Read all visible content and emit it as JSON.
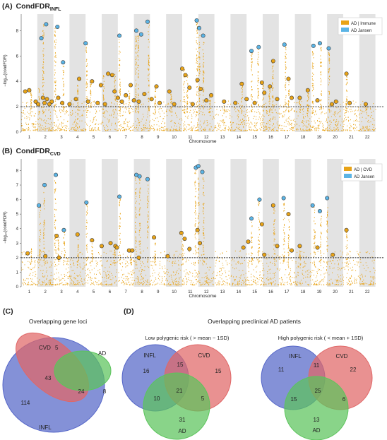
{
  "colors": {
    "immune": "#E8A317",
    "jansen": "#5BB4E5",
    "band": "#E3E3E3",
    "infl": "#5566C8",
    "cvd": "#E06767",
    "ad": "#5CC45C",
    "text": "#222222"
  },
  "chart_data": [
    {
      "type": "scatter",
      "panel": "(A)",
      "title": "CondFDR",
      "title_sub": "INFL",
      "ylabel": "−log₁₀(condFDR)",
      "xlabel": "Chromosome",
      "ylim": [
        0,
        9.3
      ],
      "yticks": [
        "0",
        "2",
        "4",
        "6",
        "8"
      ],
      "threshold": 2,
      "grid": false,
      "legend_position": "top-right",
      "legend": [
        "AD | Immune",
        "AD Jansen"
      ],
      "chromosomes": [
        "1",
        "2",
        "3",
        "4",
        "5",
        "6",
        "7",
        "8",
        "9",
        "10",
        "11",
        "12",
        "13",
        "14",
        "15",
        "16",
        "17",
        "18",
        "19",
        "20",
        "21",
        "22"
      ],
      "x_domain": [
        0,
        22.5
      ],
      "spikes": [
        [
          0.6,
          3.3
        ],
        [
          1.1,
          3.5
        ],
        [
          1.35,
          8.5
        ],
        [
          2.1,
          8.3
        ],
        [
          2.6,
          5.6
        ],
        [
          3.5,
          4.3
        ],
        [
          4.05,
          7.0
        ],
        [
          4.3,
          4.1
        ],
        [
          5.1,
          4.6
        ],
        [
          5.8,
          4.6
        ],
        [
          6.1,
          7.6
        ],
        [
          6.7,
          3.9
        ],
        [
          7.1,
          8.1
        ],
        [
          7.25,
          7.7
        ],
        [
          7.9,
          8.7
        ],
        [
          8.3,
          3.6
        ],
        [
          9.3,
          3.3
        ],
        [
          10.1,
          5.1
        ],
        [
          10.3,
          4.5
        ],
        [
          10.9,
          8.8
        ],
        [
          11.05,
          8.0
        ],
        [
          11.3,
          7.6
        ],
        [
          11.7,
          2.9
        ],
        [
          12.6,
          2.5
        ],
        [
          13.7,
          3.9
        ],
        [
          14.3,
          6.3
        ],
        [
          14.7,
          6.6
        ],
        [
          15.0,
          3.9
        ],
        [
          15.4,
          3.6
        ],
        [
          15.6,
          5.7
        ],
        [
          16.4,
          6.9
        ],
        [
          16.6,
          4.2
        ],
        [
          17.3,
          2.8
        ],
        [
          17.8,
          3.4
        ],
        [
          18.1,
          6.8
        ],
        [
          18.6,
          7.0
        ],
        [
          19.1,
          6.6
        ],
        [
          20.2,
          4.6
        ],
        [
          21.4,
          2.3
        ]
      ],
      "points": [
        {
          "x": 0.25,
          "y": 3.2,
          "g": 0
        },
        {
          "x": 0.5,
          "y": 3.3,
          "g": 0
        },
        {
          "x": 0.9,
          "y": 2.4,
          "g": 0
        },
        {
          "x": 1.05,
          "y": 2.2,
          "g": 0
        },
        {
          "x": 1.25,
          "y": 7.4,
          "g": 1
        },
        {
          "x": 1.55,
          "y": 8.5,
          "g": 1
        },
        {
          "x": 1.35,
          "y": 2.7,
          "g": 0
        },
        {
          "x": 1.45,
          "y": 2.3,
          "g": 0
        },
        {
          "x": 1.6,
          "y": 2.6,
          "g": 0
        },
        {
          "x": 1.75,
          "y": 2.2,
          "g": 0
        },
        {
          "x": 1.9,
          "y": 2.4,
          "g": 0
        },
        {
          "x": 2.25,
          "y": 8.3,
          "g": 1
        },
        {
          "x": 2.6,
          "y": 5.5,
          "g": 1
        },
        {
          "x": 2.3,
          "y": 2.7,
          "g": 0
        },
        {
          "x": 2.55,
          "y": 2.3,
          "g": 0
        },
        {
          "x": 3.0,
          "y": 2.2,
          "g": 0
        },
        {
          "x": 3.4,
          "y": 2.6,
          "g": 0
        },
        {
          "x": 3.6,
          "y": 4.2,
          "g": 0
        },
        {
          "x": 4.0,
          "y": 7.0,
          "g": 1
        },
        {
          "x": 4.15,
          "y": 2.4,
          "g": 0
        },
        {
          "x": 4.4,
          "y": 4.0,
          "g": 0
        },
        {
          "x": 4.75,
          "y": 2.3,
          "g": 0
        },
        {
          "x": 4.95,
          "y": 3.7,
          "g": 0
        },
        {
          "x": 5.2,
          "y": 2.2,
          "g": 0
        },
        {
          "x": 5.4,
          "y": 4.6,
          "g": 0
        },
        {
          "x": 5.65,
          "y": 4.5,
          "g": 0
        },
        {
          "x": 5.8,
          "y": 3.2,
          "g": 0
        },
        {
          "x": 6.1,
          "y": 7.6,
          "g": 1
        },
        {
          "x": 6.0,
          "y": 2.7,
          "g": 0
        },
        {
          "x": 6.25,
          "y": 2.4,
          "g": 0
        },
        {
          "x": 6.5,
          "y": 2.9,
          "g": 0
        },
        {
          "x": 6.8,
          "y": 3.7,
          "g": 0
        },
        {
          "x": 7.0,
          "y": 2.5,
          "g": 0
        },
        {
          "x": 7.15,
          "y": 8.0,
          "g": 1
        },
        {
          "x": 7.45,
          "y": 7.7,
          "g": 1
        },
        {
          "x": 7.3,
          "y": 2.4,
          "g": 0
        },
        {
          "x": 7.65,
          "y": 3.0,
          "g": 0
        },
        {
          "x": 7.85,
          "y": 8.7,
          "g": 1
        },
        {
          "x": 8.1,
          "y": 2.6,
          "g": 0
        },
        {
          "x": 8.4,
          "y": 3.6,
          "g": 0
        },
        {
          "x": 8.6,
          "y": 2.3,
          "g": 0
        },
        {
          "x": 9.2,
          "y": 3.2,
          "g": 0
        },
        {
          "x": 9.5,
          "y": 2.2,
          "g": 0
        },
        {
          "x": 10.0,
          "y": 5.0,
          "g": 0
        },
        {
          "x": 10.2,
          "y": 4.5,
          "g": 0
        },
        {
          "x": 10.45,
          "y": 3.5,
          "g": 0
        },
        {
          "x": 10.65,
          "y": 2.2,
          "g": 0
        },
        {
          "x": 10.9,
          "y": 8.8,
          "g": 1
        },
        {
          "x": 11.05,
          "y": 8.2,
          "g": 1
        },
        {
          "x": 11.3,
          "y": 7.6,
          "g": 1
        },
        {
          "x": 10.95,
          "y": 4.1,
          "g": 0
        },
        {
          "x": 11.15,
          "y": 3.4,
          "g": 0
        },
        {
          "x": 11.5,
          "y": 2.5,
          "g": 0
        },
        {
          "x": 11.8,
          "y": 2.9,
          "g": 0
        },
        {
          "x": 12.6,
          "y": 2.4,
          "g": 0
        },
        {
          "x": 13.3,
          "y": 2.3,
          "g": 0
        },
        {
          "x": 13.7,
          "y": 3.8,
          "g": 0
        },
        {
          "x": 14.3,
          "y": 6.4,
          "g": 1
        },
        {
          "x": 14.75,
          "y": 6.7,
          "g": 1
        },
        {
          "x": 14.0,
          "y": 2.6,
          "g": 0
        },
        {
          "x": 14.5,
          "y": 2.3,
          "g": 0
        },
        {
          "x": 14.95,
          "y": 3.9,
          "g": 0
        },
        {
          "x": 15.1,
          "y": 3.1,
          "g": 0
        },
        {
          "x": 15.45,
          "y": 3.6,
          "g": 0
        },
        {
          "x": 15.65,
          "y": 5.6,
          "g": 0
        },
        {
          "x": 15.9,
          "y": 2.6,
          "g": 0
        },
        {
          "x": 16.35,
          "y": 6.9,
          "g": 1
        },
        {
          "x": 16.6,
          "y": 4.2,
          "g": 0
        },
        {
          "x": 16.8,
          "y": 2.7,
          "g": 0
        },
        {
          "x": 17.3,
          "y": 2.7,
          "g": 0
        },
        {
          "x": 17.8,
          "y": 3.3,
          "g": 0
        },
        {
          "x": 18.15,
          "y": 6.8,
          "g": 1
        },
        {
          "x": 18.55,
          "y": 7.0,
          "g": 1
        },
        {
          "x": 18.4,
          "y": 2.5,
          "g": 0
        },
        {
          "x": 19.1,
          "y": 6.6,
          "g": 1
        },
        {
          "x": 19.3,
          "y": 2.2,
          "g": 0
        },
        {
          "x": 19.55,
          "y": 2.4,
          "g": 0
        },
        {
          "x": 20.2,
          "y": 4.6,
          "g": 0
        },
        {
          "x": 20.4,
          "y": 2.3,
          "g": 0
        },
        {
          "x": 21.4,
          "y": 2.2,
          "g": 0
        }
      ]
    },
    {
      "type": "scatter",
      "panel": "(B)",
      "title": "CondFDR",
      "title_sub": "CVD",
      "ylabel": "−log₁₀(condFDR)",
      "xlabel": "Chromosome",
      "ylim": [
        0,
        8.8
      ],
      "yticks": [
        "0",
        "1",
        "2",
        "3",
        "4",
        "5",
        "6",
        "7",
        "8"
      ],
      "threshold": 2,
      "grid": false,
      "legend_position": "top-right",
      "legend": [
        "AD | CVD",
        "AD Jansen"
      ],
      "chromosomes": [
        "1",
        "2",
        "3",
        "4",
        "5",
        "6",
        "7",
        "8",
        "9",
        "10",
        "11",
        "12",
        "13",
        "14",
        "15",
        "16",
        "17",
        "18",
        "19",
        "20",
        "21",
        "22"
      ],
      "x_domain": [
        0,
        22.5
      ],
      "spikes": [
        [
          0.6,
          2.7
        ],
        [
          1.15,
          5.6
        ],
        [
          1.4,
          7.0
        ],
        [
          2.1,
          7.7
        ],
        [
          2.3,
          3.5
        ],
        [
          2.65,
          3.9
        ],
        [
          3.5,
          3.6
        ],
        [
          4.05,
          5.8
        ],
        [
          4.4,
          3.2
        ],
        [
          5.8,
          3.0
        ],
        [
          6.1,
          6.2
        ],
        [
          6.8,
          2.5
        ],
        [
          7.1,
          7.7
        ],
        [
          7.35,
          7.6
        ],
        [
          7.85,
          7.4
        ],
        [
          8.3,
          3.4
        ],
        [
          10.0,
          3.7
        ],
        [
          10.8,
          8.2
        ],
        [
          11.0,
          8.3
        ],
        [
          11.3,
          7.9
        ],
        [
          14.3,
          4.7
        ],
        [
          14.75,
          6.0
        ],
        [
          15.7,
          5.6
        ],
        [
          16.3,
          6.1
        ],
        [
          16.6,
          5.0
        ],
        [
          17.3,
          2.8
        ],
        [
          18.2,
          5.6
        ],
        [
          18.6,
          5.2
        ],
        [
          19.0,
          6.1
        ],
        [
          20.2,
          3.9
        ]
      ],
      "points": [
        {
          "x": 0.4,
          "y": 2.3,
          "g": 0
        },
        {
          "x": 1.1,
          "y": 5.6,
          "g": 1
        },
        {
          "x": 1.45,
          "y": 7.0,
          "g": 1
        },
        {
          "x": 1.5,
          "y": 2.1,
          "g": 0
        },
        {
          "x": 2.15,
          "y": 7.7,
          "g": 1
        },
        {
          "x": 2.2,
          "y": 3.5,
          "g": 0
        },
        {
          "x": 2.35,
          "y": 2.0,
          "g": 0
        },
        {
          "x": 2.65,
          "y": 3.9,
          "g": 1
        },
        {
          "x": 3.5,
          "y": 3.6,
          "g": 0
        },
        {
          "x": 4.05,
          "y": 5.8,
          "g": 1
        },
        {
          "x": 4.4,
          "y": 3.2,
          "g": 0
        },
        {
          "x": 5.0,
          "y": 2.8,
          "g": 0
        },
        {
          "x": 5.55,
          "y": 3.0,
          "g": 0
        },
        {
          "x": 5.85,
          "y": 2.8,
          "g": 0
        },
        {
          "x": 6.1,
          "y": 6.2,
          "g": 1
        },
        {
          "x": 5.95,
          "y": 2.7,
          "g": 0
        },
        {
          "x": 6.7,
          "y": 2.5,
          "g": 0
        },
        {
          "x": 6.9,
          "y": 2.5,
          "g": 0
        },
        {
          "x": 7.15,
          "y": 7.7,
          "g": 1
        },
        {
          "x": 7.35,
          "y": 7.6,
          "g": 1
        },
        {
          "x": 7.3,
          "y": 2.0,
          "g": 0
        },
        {
          "x": 7.85,
          "y": 7.4,
          "g": 1
        },
        {
          "x": 8.25,
          "y": 3.4,
          "g": 0
        },
        {
          "x": 9.1,
          "y": 2.1,
          "g": 0
        },
        {
          "x": 9.95,
          "y": 3.7,
          "g": 0
        },
        {
          "x": 10.15,
          "y": 3.3,
          "g": 0
        },
        {
          "x": 10.45,
          "y": 2.6,
          "g": 0
        },
        {
          "x": 10.85,
          "y": 8.2,
          "g": 1
        },
        {
          "x": 11.0,
          "y": 8.3,
          "g": 1
        },
        {
          "x": 11.25,
          "y": 7.9,
          "g": 1
        },
        {
          "x": 10.95,
          "y": 3.9,
          "g": 0
        },
        {
          "x": 11.1,
          "y": 3.0,
          "g": 0
        },
        {
          "x": 13.8,
          "y": 2.7,
          "g": 0
        },
        {
          "x": 14.1,
          "y": 3.1,
          "g": 0
        },
        {
          "x": 14.3,
          "y": 4.7,
          "g": 1
        },
        {
          "x": 14.8,
          "y": 6.0,
          "g": 1
        },
        {
          "x": 14.95,
          "y": 4.3,
          "g": 0
        },
        {
          "x": 15.1,
          "y": 2.2,
          "g": 0
        },
        {
          "x": 15.65,
          "y": 5.6,
          "g": 0
        },
        {
          "x": 15.9,
          "y": 2.8,
          "g": 0
        },
        {
          "x": 16.3,
          "y": 6.1,
          "g": 1
        },
        {
          "x": 16.6,
          "y": 5.0,
          "g": 0
        },
        {
          "x": 16.8,
          "y": 2.5,
          "g": 0
        },
        {
          "x": 17.3,
          "y": 2.8,
          "g": 0
        },
        {
          "x": 18.1,
          "y": 5.6,
          "g": 1
        },
        {
          "x": 18.55,
          "y": 5.2,
          "g": 1
        },
        {
          "x": 18.4,
          "y": 2.7,
          "g": 0
        },
        {
          "x": 19.0,
          "y": 6.1,
          "g": 1
        },
        {
          "x": 19.35,
          "y": 2.2,
          "g": 0
        },
        {
          "x": 20.2,
          "y": 3.9,
          "g": 0
        }
      ]
    }
  ],
  "panel_c": {
    "label": "(C)",
    "title": "Overlapping gene loci",
    "sets": [
      "INFL",
      "CVD",
      "AD"
    ],
    "counts": {
      "infl_only": "114",
      "cvd_only": "5",
      "ad_only": "8",
      "infl_cvd": "43",
      "all_three": "24"
    }
  },
  "panel_d": {
    "label": "(D)",
    "title": "Overlapping preclinical AD patients",
    "low": {
      "subtitle": "Low polygenic risk ( > mean − 1SD)",
      "sets": [
        "INFL",
        "CVD",
        "AD"
      ],
      "counts": {
        "infl_only": "16",
        "cvd_only": "15",
        "ad_only": "31",
        "infl_cvd": "15",
        "infl_ad": "10",
        "cvd_ad": "5",
        "all_three": "21"
      }
    },
    "high": {
      "subtitle": "High polygenic risk ( < mean + 1SD)",
      "sets": [
        "INFL",
        "CVD",
        "AD"
      ],
      "counts": {
        "infl_only": "11",
        "cvd_only": "22",
        "ad_only": "13",
        "infl_cvd": "11",
        "infl_ad": "15",
        "cvd_ad": "6",
        "all_three": "25"
      }
    }
  }
}
